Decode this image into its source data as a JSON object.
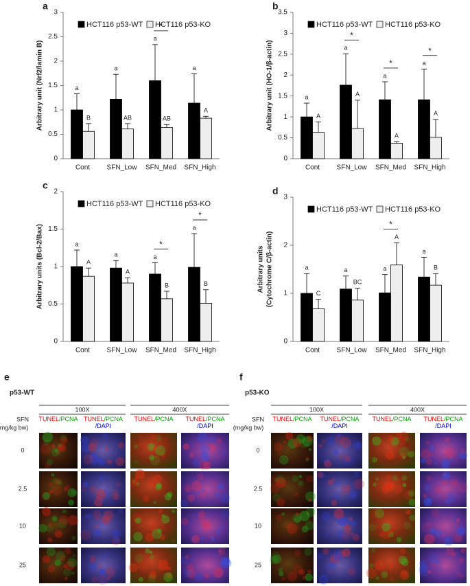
{
  "chart_data": [
    {
      "type": "bar",
      "panel_label": "a",
      "ylabel": [
        "Arbitrary unit (Nrf2/lamin B)"
      ],
      "categories": [
        "Cont",
        "SFN_Low",
        "SFN_Med",
        "SFN_High"
      ],
      "series": [
        {
          "name": "HCT116 p53-WT",
          "color": "#000000",
          "values": [
            1.0,
            1.22,
            1.6,
            1.14
          ],
          "errors": [
            0.33,
            0.51,
            0.74,
            0.6
          ],
          "letters": [
            "a",
            "a",
            "a",
            "a"
          ]
        },
        {
          "name": "HCT116 p53-KO",
          "color": "#eeeeee",
          "values": [
            0.56,
            0.61,
            0.64,
            0.83
          ],
          "errors": [
            0.16,
            0.11,
            0.06,
            0.04
          ],
          "letters": [
            "B",
            "AB",
            "AB",
            "A"
          ]
        }
      ],
      "significance": [
        null,
        null,
        "*",
        null
      ],
      "ylim": [
        0,
        3
      ],
      "yticks": [
        0,
        0.5,
        1,
        1.5,
        2,
        2.5,
        3
      ]
    },
    {
      "type": "bar",
      "panel_label": "b",
      "ylabel": [
        "Arbitrary unit (HO-1/β-actin)"
      ],
      "categories": [
        "Cont",
        "SFN_Low",
        "SFN_Med",
        "SFN_High"
      ],
      "series": [
        {
          "name": "HCT116 p53-WT",
          "color": "#000000",
          "values": [
            1.0,
            1.76,
            1.41,
            1.41
          ],
          "errors": [
            0.33,
            0.75,
            0.43,
            0.73
          ],
          "letters": [
            "a",
            "a",
            "a",
            "a"
          ]
        },
        {
          "name": "HCT116 p53-KO",
          "color": "#eeeeee",
          "values": [
            0.63,
            0.72,
            0.37,
            0.51
          ],
          "errors": [
            0.25,
            0.68,
            0.04,
            0.43
          ],
          "letters": [
            "A",
            "A",
            "A",
            "A"
          ]
        }
      ],
      "significance": [
        null,
        "*",
        "*",
        "*"
      ],
      "ylim": [
        0,
        3.5
      ],
      "yticks": [
        0,
        0.5,
        1,
        1.5,
        2,
        2.5,
        3,
        3.5
      ]
    },
    {
      "type": "bar",
      "panel_label": "c",
      "ylabel": [
        "Arbitrary units (Bcl-2/Bax)"
      ],
      "categories": [
        "Cont",
        "SFN_Low",
        "SFN_Med",
        "SFN_High"
      ],
      "series": [
        {
          "name": "HCT116 p53-WT",
          "color": "#000000",
          "values": [
            1.0,
            0.98,
            0.9,
            0.99
          ],
          "errors": [
            0.22,
            0.1,
            0.15,
            0.45
          ],
          "letters": [
            "a",
            "a",
            "a",
            "a"
          ]
        },
        {
          "name": "HCT116 p53-KO",
          "color": "#eeeeee",
          "values": [
            0.87,
            0.78,
            0.57,
            0.51
          ],
          "errors": [
            0.11,
            0.07,
            0.1,
            0.18
          ],
          "letters": [
            "A",
            "A",
            "B",
            "B"
          ]
        }
      ],
      "significance": [
        null,
        null,
        "*",
        "*"
      ],
      "ylim": [
        0,
        2
      ],
      "yticks": [
        0,
        0.5,
        1,
        1.5,
        2
      ]
    },
    {
      "type": "bar",
      "panel_label": "d",
      "ylabel": [
        "Arbitrary units",
        "(Cytochrome C/β-actin)"
      ],
      "categories": [
        "Cont",
        "SFN_Low",
        "SFN_Med",
        "SFN_High"
      ],
      "series": [
        {
          "name": "HCT116 p53-WT",
          "color": "#000000",
          "values": [
            1.0,
            1.09,
            1.01,
            1.34
          ],
          "errors": [
            0.41,
            0.27,
            0.38,
            0.41
          ],
          "letters": [
            "a",
            "a",
            "a",
            "a"
          ]
        },
        {
          "name": "HCT116 p53-KO",
          "color": "#eeeeee",
          "values": [
            0.68,
            0.86,
            1.59,
            1.17
          ],
          "errors": [
            0.2,
            0.25,
            0.46,
            0.24
          ],
          "letters": [
            "C",
            "BC",
            "A",
            "B"
          ]
        }
      ],
      "significance": [
        null,
        null,
        "*",
        null
      ],
      "ylim": [
        0,
        3
      ],
      "yticks": [
        0,
        1,
        2,
        3
      ]
    }
  ],
  "image_panels": [
    {
      "label": "e",
      "title": "p53-WT",
      "magnifications": [
        "100X",
        "400X"
      ],
      "row_header": [
        "SFN",
        "(mg/kg bw)"
      ],
      "rows": [
        "0",
        "2.5",
        "10",
        "25"
      ],
      "columns": [
        [
          [
            {
              "text": "TUNEL",
              "color": "#e00000"
            },
            {
              "text": "/PCNA",
              "color": "#00a000"
            }
          ]
        ],
        [
          [
            {
              "text": "TUNEL",
              "color": "#e00000"
            },
            {
              "text": "/PCNA",
              "color": "#00a000"
            }
          ],
          [
            {
              "text": "/DAPI",
              "color": "#0000d0"
            }
          ]
        ],
        [
          [
            {
              "text": "TUNEL",
              "color": "#e00000"
            },
            {
              "text": "/PCNA",
              "color": "#00a000"
            }
          ]
        ],
        [
          [
            {
              "text": "TUNEL",
              "color": "#e00000"
            },
            {
              "text": "/PCNA",
              "color": "#00a000"
            }
          ],
          [
            {
              "text": "/DAPI",
              "color": "#0000d0"
            }
          ]
        ]
      ]
    },
    {
      "label": "f",
      "title": "p53-KO",
      "magnifications": [
        "100X",
        "400X"
      ],
      "row_header": [
        "SFN",
        "(mg/kg bw)"
      ],
      "rows": [
        "0",
        "2.5",
        "10",
        "25"
      ],
      "columns": [
        [
          [
            {
              "text": "TUNEL",
              "color": "#e00000"
            },
            {
              "text": "/PCNA",
              "color": "#00a000"
            }
          ]
        ],
        [
          [
            {
              "text": "TUNEL",
              "color": "#e00000"
            },
            {
              "text": "/PCNA",
              "color": "#00a000"
            }
          ],
          [
            {
              "text": "/DAPI",
              "color": "#0000d0"
            }
          ]
        ],
        [
          [
            {
              "text": "TUNEL",
              "color": "#e00000"
            },
            {
              "text": "/PCNA",
              "color": "#00a000"
            }
          ]
        ],
        [
          [
            {
              "text": "TUNEL",
              "color": "#e00000"
            },
            {
              "text": "/PCNA",
              "color": "#00a000"
            }
          ],
          [
            {
              "text": "/DAPI",
              "color": "#0000d0"
            }
          ]
        ]
      ]
    }
  ]
}
